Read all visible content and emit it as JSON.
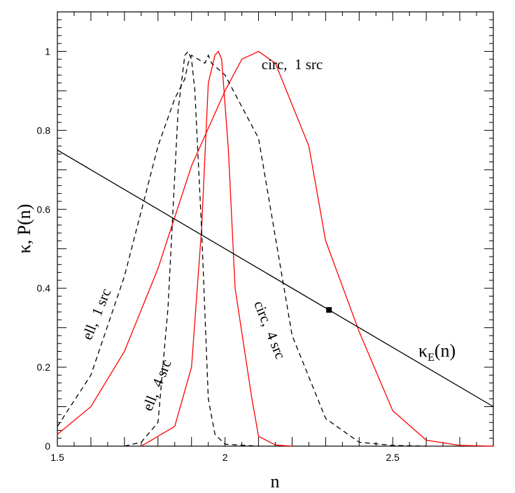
{
  "chart_data": {
    "type": "line",
    "xlabel": "n",
    "ylabel": "κ,  P(n)",
    "xlim": [
      1.5,
      2.8
    ],
    "ylim": [
      0,
      1.1
    ],
    "x_ticks": [
      1.5,
      2,
      2.5
    ],
    "x_tick_labels": [
      "1.5",
      "2",
      "2.5"
    ],
    "y_ticks": [
      0,
      0.2,
      0.4,
      0.6,
      0.8,
      1
    ],
    "y_tick_labels": [
      "0",
      "0.2",
      "0.4",
      "0.6",
      "0.8",
      "1"
    ],
    "grid": false,
    "series": [
      {
        "name": "circ, 1 src",
        "color": "#ff0000",
        "style": "solid",
        "x": [
          1.5,
          1.6,
          1.7,
          1.8,
          1.9,
          2.0,
          2.05,
          2.1,
          2.15,
          2.25,
          2.3,
          2.4,
          2.5,
          2.6,
          2.7,
          2.8
        ],
        "y": [
          0.03,
          0.1,
          0.24,
          0.45,
          0.71,
          0.9,
          0.98,
          1.0,
          0.97,
          0.76,
          0.52,
          0.29,
          0.09,
          0.015,
          0.002,
          0.0
        ]
      },
      {
        "name": "circ, 4 src",
        "color": "#ff0000",
        "style": "solid",
        "x": [
          1.75,
          1.85,
          1.9,
          1.93,
          1.95,
          1.97,
          1.98,
          1.99,
          2.01,
          2.03,
          2.08,
          2.1,
          2.15,
          2.2
        ],
        "y": [
          0.0,
          0.05,
          0.2,
          0.55,
          0.92,
          0.99,
          1.0,
          0.98,
          0.75,
          0.4,
          0.12,
          0.025,
          0.003,
          0.0
        ]
      },
      {
        "name": "ell, 1 src",
        "color": "#000000",
        "style": "dashed",
        "x": [
          1.5,
          1.6,
          1.7,
          1.8,
          1.85,
          1.88,
          1.89,
          1.9,
          1.92,
          1.94,
          1.95,
          1.96,
          2.0,
          2.1,
          2.2,
          2.3,
          2.4,
          2.5,
          2.6
        ],
        "y": [
          0.05,
          0.18,
          0.43,
          0.76,
          0.88,
          0.93,
          0.97,
          0.99,
          0.98,
          0.97,
          0.99,
          0.97,
          0.94,
          0.78,
          0.28,
          0.07,
          0.01,
          0.002,
          0.0
        ]
      },
      {
        "name": "ell, 4 src",
        "color": "#000000",
        "style": "dashed",
        "x": [
          1.7,
          1.75,
          1.8,
          1.83,
          1.86,
          1.88,
          1.89,
          1.9,
          1.91,
          1.93,
          1.95,
          1.97,
          2.0,
          2.1
        ],
        "y": [
          0.0,
          0.01,
          0.06,
          0.35,
          0.85,
          0.99,
          1.0,
          0.98,
          0.9,
          0.55,
          0.12,
          0.03,
          0.005,
          0.0
        ]
      },
      {
        "name": "κE(n)",
        "color": "#000000",
        "style": "solid",
        "x": [
          1.5,
          2.8
        ],
        "y": [
          0.75,
          0.1
        ]
      }
    ],
    "marker_point": {
      "x": 2.31,
      "y": 0.345
    },
    "annotations": [
      {
        "text": "circ,  1 src",
        "x": 2.2,
        "y": 0.955,
        "rotate": 0
      },
      {
        "text": "ell,  1 src",
        "x": 1.63,
        "y": 0.33,
        "rotate": -68
      },
      {
        "text": "ell,  4 src",
        "x": 1.81,
        "y": 0.15,
        "rotate": -68
      },
      {
        "text": "circ,  4 src",
        "x": 2.12,
        "y": 0.29,
        "rotate": 68
      }
    ],
    "kappa_label": {
      "main": "κ",
      "sub": "E",
      "tail": "(n)"
    }
  }
}
